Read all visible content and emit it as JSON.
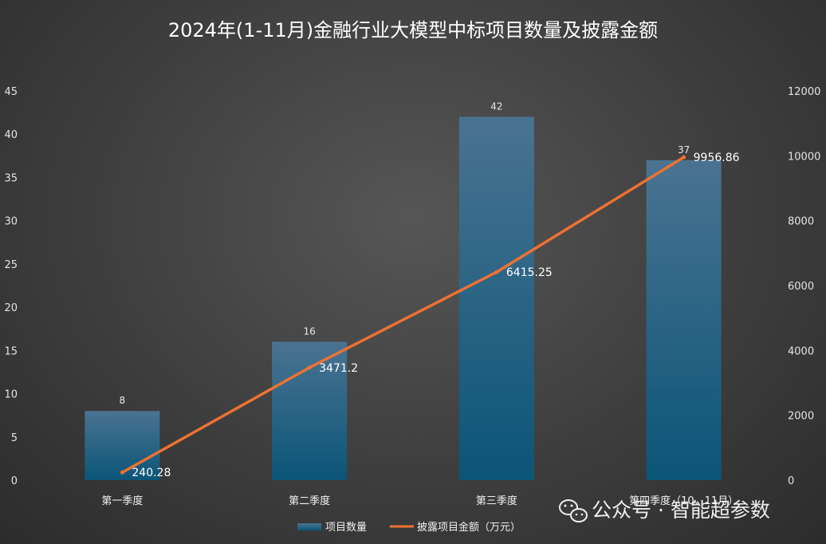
{
  "chart_data": {
    "type": "bar",
    "title": "2024年(1-11月)金融行业大模型中标项目数量及披露金额",
    "categories": [
      "第一季度",
      "第二季度",
      "第三季度",
      "第四季度（10、11月）"
    ],
    "series": [
      {
        "name": "项目数量",
        "type": "bar",
        "axis": "left",
        "values": [
          8,
          16,
          42,
          37
        ],
        "value_labels": [
          "8",
          "16",
          "42",
          "37"
        ]
      },
      {
        "name": "披露项目金额（万元）",
        "type": "line",
        "axis": "right",
        "values": [
          240.28,
          3471.2,
          6415.25,
          9956.86
        ],
        "value_labels": [
          "240.28",
          "3471.2",
          "6415.25",
          "9956.86"
        ]
      }
    ],
    "y_left": {
      "ylim": [
        0,
        45
      ],
      "ticks": [
        "0",
        "5",
        "10",
        "15",
        "20",
        "25",
        "30",
        "35",
        "40",
        "45"
      ]
    },
    "y_right": {
      "ylim": [
        0,
        12000
      ],
      "ticks": [
        "0",
        "2000",
        "4000",
        "6000",
        "8000",
        "10000",
        "12000"
      ]
    },
    "grid": false,
    "legend": "bottom",
    "colors": {
      "bar_top": "#4a7391",
      "bar_bottom": "#0b5578",
      "line": "#ed7232"
    }
  },
  "watermark": {
    "text": "公众号 · 智能超参数",
    "icon": "wechat-icon"
  }
}
